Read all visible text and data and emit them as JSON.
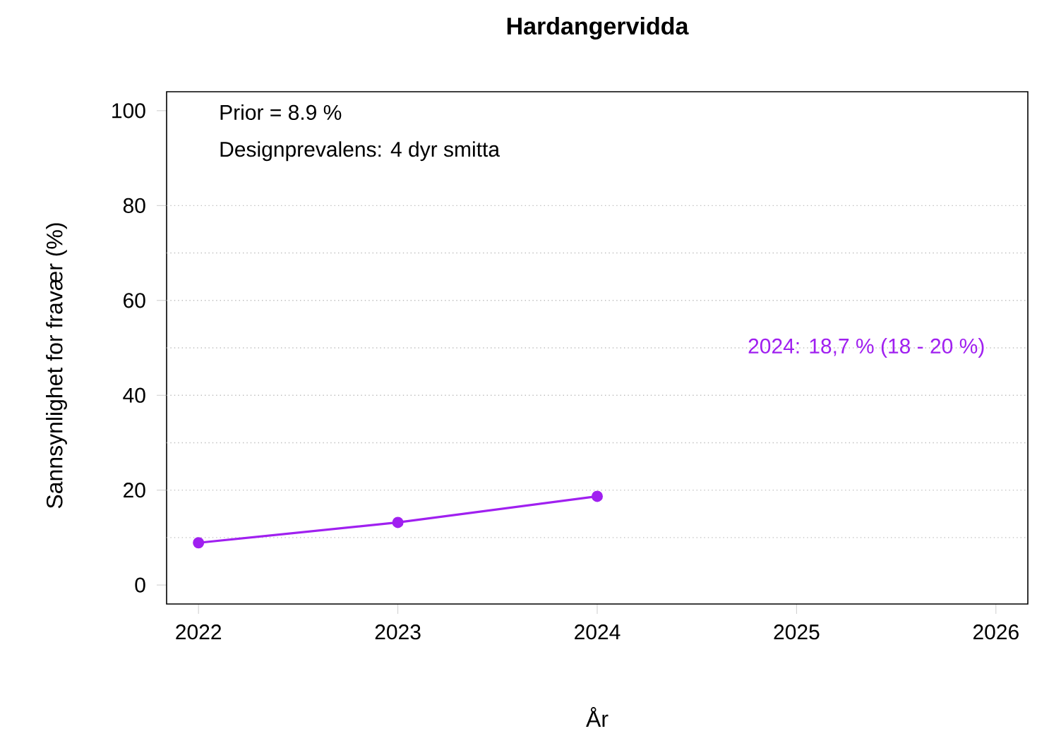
{
  "chart_data": {
    "type": "line",
    "title": "Hardangervidda",
    "xlabel": "År",
    "ylabel": "Sannsynlighet for fravær (%)",
    "x": [
      2022,
      2023,
      2024
    ],
    "series": [
      {
        "color": "#a020f0",
        "values": [
          8.9,
          13.2,
          18.7
        ]
      }
    ],
    "xlim": [
      2021.84,
      2026.16
    ],
    "xticks": [
      2022,
      2023,
      2024,
      2025,
      2026
    ],
    "ylim": [
      -4,
      104
    ],
    "yticks": [
      0,
      20,
      40,
      60,
      80,
      100
    ],
    "marker": "circle",
    "line_style": "solid",
    "ref_lines": [
      {
        "axis": "y",
        "value": 10,
        "color": "#bebebe",
        "line_style": "dotted"
      },
      {
        "axis": "y",
        "value": 20,
        "color": "#bebebe",
        "line_style": "dotted"
      },
      {
        "axis": "y",
        "value": 30,
        "color": "#bebebe",
        "line_style": "dotted"
      },
      {
        "axis": "y",
        "value": 40,
        "color": "#bebebe",
        "line_style": "dotted"
      },
      {
        "axis": "y",
        "value": 50,
        "color": "#bebebe",
        "line_style": "dotted"
      },
      {
        "axis": "y",
        "value": 60,
        "color": "#bebebe",
        "line_style": "dotted"
      },
      {
        "axis": "y",
        "value": 70,
        "color": "#bebebe",
        "line_style": "dotted"
      },
      {
        "axis": "y",
        "value": 80,
        "color": "#bebebe",
        "line_style": "dotted"
      }
    ],
    "annotations": [
      "Prior = 8.9 %",
      "Designprevalens: 4 dyr smitta",
      {
        "text": "2024: 18,7 % (18 - 20 %)",
        "x": 2025.35,
        "y": 50
      }
    ]
  }
}
